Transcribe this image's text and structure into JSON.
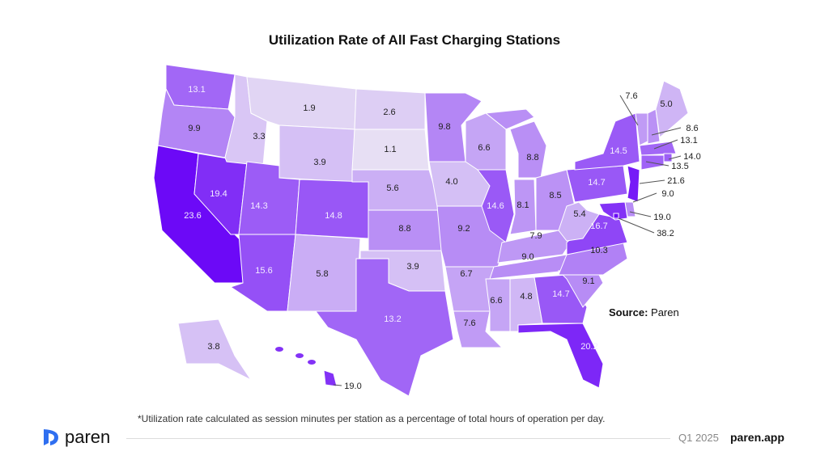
{
  "title": "Utilization Rate of All Fast Charging Stations",
  "source_label": "Source:",
  "source_value": "Paren",
  "footnote": "*Utilization rate calculated as session minutes per station as a percentage of total hours of operation per day.",
  "brand": "paren",
  "period": "Q1 2025",
  "site": "paren.app",
  "colors": {
    "low": "#efedf4",
    "high": "#6a06f7"
  },
  "states": [
    {
      "id": "WA",
      "value": "13.1"
    },
    {
      "id": "OR",
      "value": "9.9"
    },
    {
      "id": "CA",
      "value": "23.6"
    },
    {
      "id": "NV",
      "value": "19.4"
    },
    {
      "id": "ID",
      "value": "3.3"
    },
    {
      "id": "MT",
      "value": "1.9"
    },
    {
      "id": "WY",
      "value": "3.9"
    },
    {
      "id": "UT",
      "value": "14.3"
    },
    {
      "id": "CO",
      "value": "14.8"
    },
    {
      "id": "AZ",
      "value": "15.6"
    },
    {
      "id": "NM",
      "value": "5.8"
    },
    {
      "id": "ND",
      "value": "2.6"
    },
    {
      "id": "SD",
      "value": "1.1"
    },
    {
      "id": "NE",
      "value": "5.6"
    },
    {
      "id": "KS",
      "value": "8.8"
    },
    {
      "id": "OK",
      "value": "3.9"
    },
    {
      "id": "TX",
      "value": "13.2"
    },
    {
      "id": "MN",
      "value": "9.8"
    },
    {
      "id": "IA",
      "value": "4.0"
    },
    {
      "id": "MO",
      "value": "9.2"
    },
    {
      "id": "AR",
      "value": "6.7"
    },
    {
      "id": "LA",
      "value": "7.6"
    },
    {
      "id": "WI",
      "value": "6.6"
    },
    {
      "id": "IL",
      "value": "14.6"
    },
    {
      "id": "MI",
      "value": "8.8"
    },
    {
      "id": "IN",
      "value": "8.1"
    },
    {
      "id": "OH",
      "value": "8.5"
    },
    {
      "id": "KY",
      "value": "7.9"
    },
    {
      "id": "TN",
      "value": "9.0"
    },
    {
      "id": "MS",
      "value": "6.6"
    },
    {
      "id": "AL",
      "value": "4.8"
    },
    {
      "id": "GA",
      "value": "14.7"
    },
    {
      "id": "FL",
      "value": "20.2"
    },
    {
      "id": "SC",
      "value": "9.1"
    },
    {
      "id": "NC",
      "value": "10.3"
    },
    {
      "id": "VA",
      "value": "16.7"
    },
    {
      "id": "WV",
      "value": "5.4"
    },
    {
      "id": "PA",
      "value": "14.7"
    },
    {
      "id": "NY",
      "value": "14.5"
    },
    {
      "id": "VT",
      "value": "7.6"
    },
    {
      "id": "NH",
      "value": "8.6"
    },
    {
      "id": "ME",
      "value": "5.0"
    },
    {
      "id": "MA",
      "value": "13.1"
    },
    {
      "id": "RI",
      "value": "14.0"
    },
    {
      "id": "CT",
      "value": "13.5"
    },
    {
      "id": "NJ",
      "value": "21.6"
    },
    {
      "id": "DE",
      "value": "9.0"
    },
    {
      "id": "MD",
      "value": "19.0"
    },
    {
      "id": "DC",
      "value": "38.2"
    },
    {
      "id": "AK",
      "value": "3.8"
    },
    {
      "id": "HI",
      "value": "19.0"
    }
  ]
}
